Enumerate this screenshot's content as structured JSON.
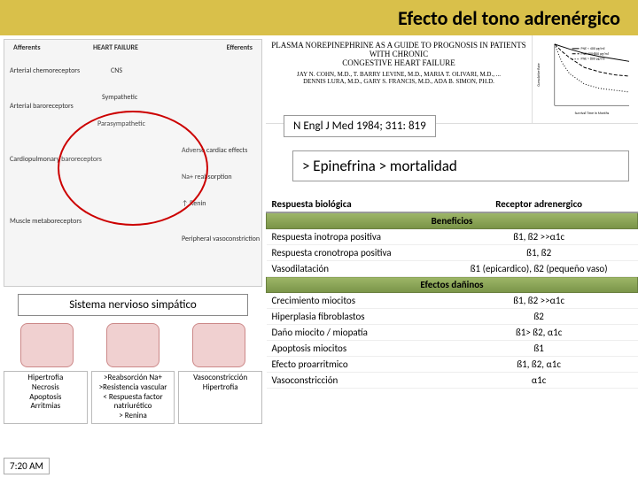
{
  "header": {
    "title": "Efecto del tono adrenérgico"
  },
  "diagram": {
    "top_labels": {
      "afferents": "Afferents",
      "center": "HEART FAILURE",
      "efferents": "Efferents"
    },
    "left_items": [
      "Arterial chemoreceptors",
      "Arterial baroreceptors",
      "Cardiopulmonary baroreceptors",
      "Muscle metaboreceptors"
    ],
    "center_items": [
      "CNS",
      "Sympathetic",
      "Parasympathetic",
      "Adverse cardiac effects"
    ],
    "right_items": [
      "Na+ reabsorption",
      "↑ Renin",
      "Peripheral vasoconstriction"
    ]
  },
  "sns_label": "Sistema nervioso simpático",
  "bottom_cols": [
    {
      "lines": [
        "Hipertrofia",
        "Necrosis",
        "Apoptosis",
        "Arritmias"
      ]
    },
    {
      "lines": [
        ">Reabsorción Na+",
        ">Resistencia vascular",
        "< Respuesta factor natriurético",
        "> Renina"
      ]
    },
    {
      "lines": [
        "Vasoconstricción",
        "Hipertrofia"
      ]
    }
  ],
  "timestamp": "7:20 AM",
  "paper": {
    "title_line1": "PLASMA NOREPINEPHRINE AS A GUIDE TO PROGNOSIS IN PATIENTS WITH CHRONIC",
    "title_line2": "CONGESTIVE HEART FAILURE",
    "authors": "JAY N. COHN, M.D., T. BARRY LEVINE, M.D., MARIA T. OLIVARI, M.D., ...",
    "authors2": "DENNIS LURA, M.D., GARY S. FRANCIS, M.D., ADA B. SIMON, PH.D."
  },
  "nejm_cite": "N Engl J Med 1984; 311: 819",
  "highlight": "> Epinefrina > mortalidad",
  "table": {
    "headers": [
      "Respuesta biológica",
      "Receptor adrenergico"
    ],
    "beneficios_label": "Beneficios",
    "beneficios": [
      [
        "Respuesta inotropa positiva",
        "ß1, ß2 >>α1c"
      ],
      [
        "Respuesta cronotropa positiva",
        "ß1, ß2"
      ],
      [
        "Vasodilatación",
        "ß1 (epicardico), ß2 (pequeño vaso)"
      ]
    ],
    "daninos_label": "Efectos dañinos",
    "daninos": [
      [
        "Crecimiento miocitos",
        "ß1, ß2 >>α1c"
      ],
      [
        "Hiperplasia fibroblastos",
        "ß2"
      ],
      [
        "Daño miocito / miopatía",
        "ß1> ß2, α1c"
      ],
      [
        "Apoptosis miocitos",
        "ß1"
      ],
      [
        "Efecto proarritmico",
        "ß1, ß2, α1c"
      ],
      [
        "Vasoconstricción",
        "α1c"
      ]
    ]
  },
  "chart": {
    "ylabel_lines": [
      "Cumulative",
      "Rate"
    ],
    "xlabel": "Survival Time in Months",
    "legend": [
      "PNE < 400 pg/ml",
      "PNE 400-800 pg/ml",
      "PNE > 800 pg/ml"
    ],
    "series": [
      {
        "points": [
          [
            0,
            1.0
          ],
          [
            6,
            0.96
          ],
          [
            12,
            0.92
          ],
          [
            24,
            0.85
          ],
          [
            36,
            0.8
          ],
          [
            48,
            0.76
          ],
          [
            60,
            0.72
          ]
        ],
        "dash": "0"
      },
      {
        "points": [
          [
            0,
            1.0
          ],
          [
            6,
            0.88
          ],
          [
            12,
            0.78
          ],
          [
            24,
            0.62
          ],
          [
            36,
            0.55
          ],
          [
            48,
            0.5
          ],
          [
            60,
            0.48
          ]
        ],
        "dash": "4,2"
      },
      {
        "points": [
          [
            0,
            1.0
          ],
          [
            6,
            0.7
          ],
          [
            12,
            0.52
          ],
          [
            24,
            0.35
          ],
          [
            36,
            0.28
          ],
          [
            48,
            0.25
          ],
          [
            60,
            0.22
          ]
        ],
        "dash": "1,2"
      }
    ],
    "xlim": [
      0,
      60
    ],
    "ylim": [
      0,
      1.0
    ],
    "colors": {
      "line": "#000",
      "bg": "#fff"
    }
  }
}
